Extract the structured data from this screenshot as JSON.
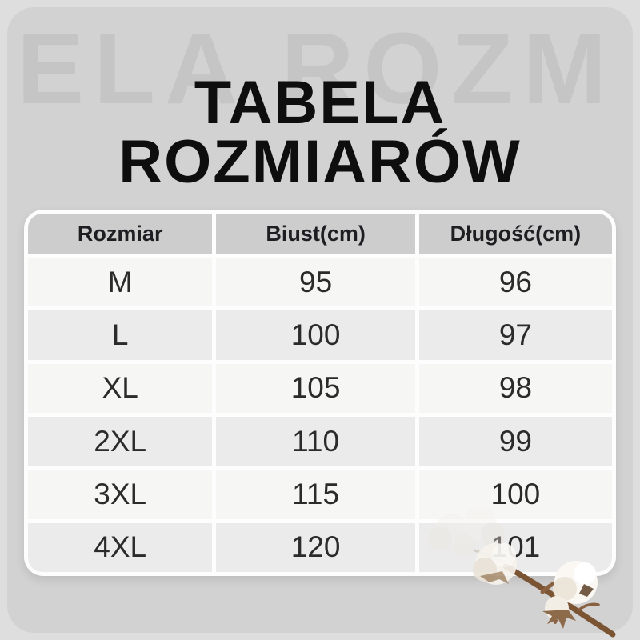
{
  "page": {
    "watermark_text": "ELA ROZM",
    "title_line1": "TABELA",
    "title_line2": "ROZMIARÓW"
  },
  "table": {
    "columns": [
      "Rozmiar",
      "Biust(cm)",
      "Długość(cm)"
    ],
    "rows": [
      {
        "size": "M",
        "bust": "95",
        "length": "96"
      },
      {
        "size": "L",
        "bust": "100",
        "length": "97"
      },
      {
        "size": "XL",
        "bust": "105",
        "length": "98"
      },
      {
        "size": "2XL",
        "bust": "110",
        "length": "99"
      },
      {
        "size": "3XL",
        "bust": "115",
        "length": "100"
      },
      {
        "size": "4XL",
        "bust": "120",
        "length": "101"
      }
    ]
  },
  "icons": {
    "decoration": "cotton-flower-branch"
  },
  "colors": {
    "outer_background": "#dedede",
    "inner_background": "#d2d2d2",
    "watermark": "#c5c5c5",
    "title_text": "#0e0e0e",
    "panel_background": "#fdfdfd",
    "header_cell": "#cdcdcd",
    "header_text": "#1d1d22",
    "row_light": "#f6f6f5",
    "row_dark": "#ebebeb",
    "cell_text": "#2b2b2b",
    "cotton_stem": "#7b5434",
    "cotton_boll": "#f7f3ee"
  },
  "chart_data": {
    "type": "table",
    "title": "TABELA ROZMIARÓW",
    "columns": [
      "Rozmiar",
      "Biust(cm)",
      "Długość(cm)"
    ],
    "rows": [
      [
        "M",
        95,
        96
      ],
      [
        "L",
        100,
        97
      ],
      [
        "XL",
        105,
        98
      ],
      [
        "2XL",
        110,
        99
      ],
      [
        "3XL",
        115,
        100
      ],
      [
        "4XL",
        120,
        101
      ]
    ],
    "units": "cm",
    "notes": "Alternating light/dark row stripes; header row gray; white gaps between cells"
  }
}
